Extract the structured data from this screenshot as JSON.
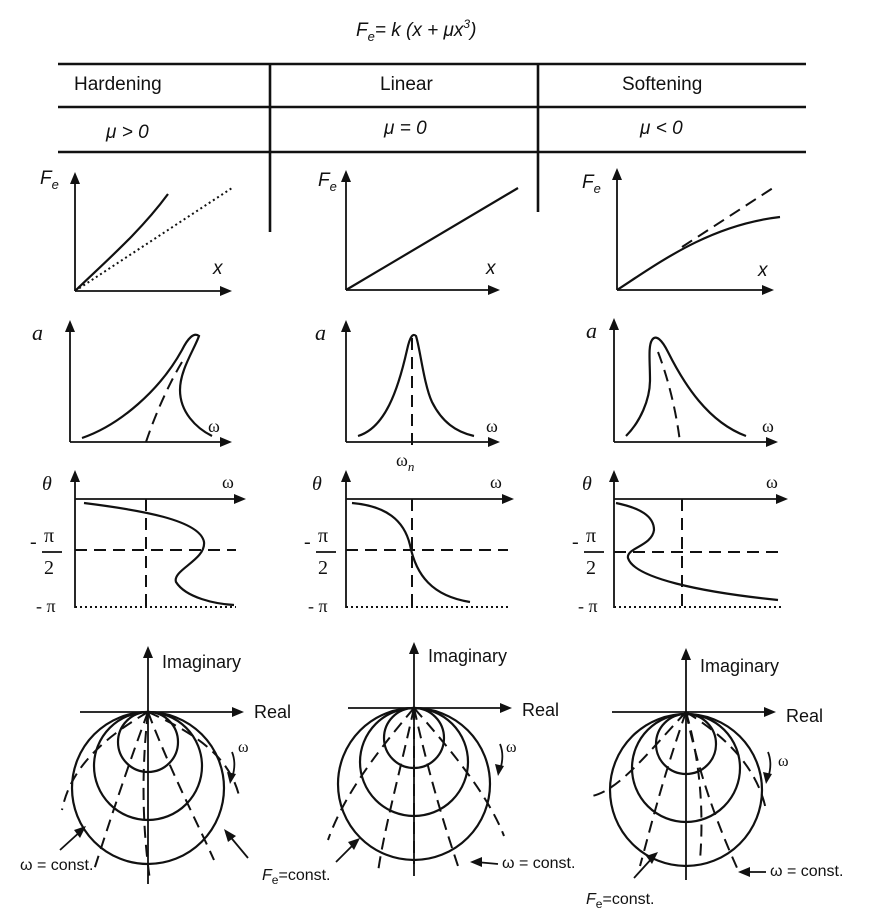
{
  "formula": {
    "lhs_main": "F",
    "lhs_sub": "e",
    "rhs_main": "= k (x + μx",
    "rhs_sup": "3",
    "rhs_end": ")"
  },
  "columns": [
    {
      "name": "Hardening",
      "mu": "μ > 0"
    },
    {
      "name": "Linear",
      "mu": "μ = 0"
    },
    {
      "name": "Softening",
      "mu": "μ < 0"
    }
  ],
  "labels": {
    "fe_main": "F",
    "fe_sub": "e",
    "x": "x",
    "a": "a",
    "omega": "ω",
    "omega_n_main": "ω",
    "omega_n_sub": "n",
    "theta": "θ",
    "minus": "-",
    "pi": "π",
    "two": "2",
    "minus_pi": "- π",
    "imaginary": "Imaginary",
    "real": "Real",
    "omega_const": "ω = const.",
    "fe_const_main": "F",
    "fe_const_sub": "e",
    "fe_const_tail": "=const."
  }
}
